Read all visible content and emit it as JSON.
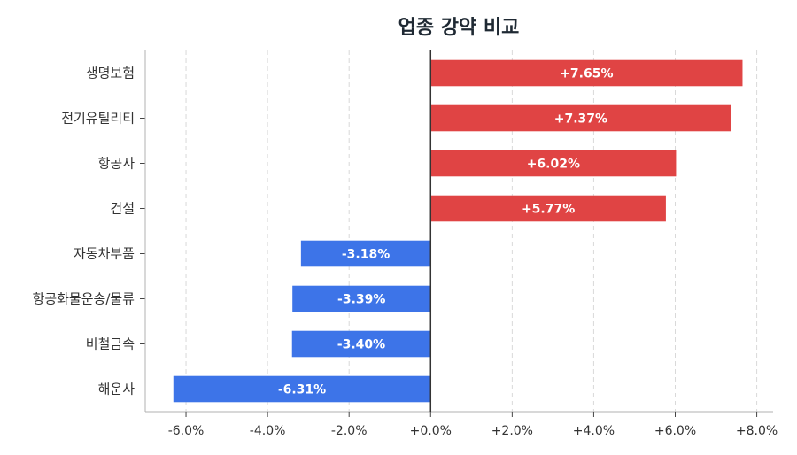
{
  "chart_data": {
    "type": "bar",
    "orientation": "horizontal",
    "title": "업종 강약 비교",
    "categories": [
      "생명보험",
      "전기유틸리티",
      "항공사",
      "건설",
      "자동차부품",
      "항공화물운송/물류",
      "비철금속",
      "해운사"
    ],
    "values": [
      7.65,
      7.37,
      6.02,
      5.77,
      -3.18,
      -3.39,
      -3.4,
      -6.31
    ],
    "value_labels": [
      "+7.65%",
      "+7.37%",
      "+6.02%",
      "+5.77%",
      "-3.18%",
      "-3.39%",
      "-3.40%",
      "-6.31%"
    ],
    "xlim": [
      -7.0,
      8.4
    ],
    "xticks": [
      -6,
      -4,
      -2,
      0,
      2,
      4,
      6,
      8
    ],
    "xtick_labels": [
      "-6.0%",
      "-4.0%",
      "-2.0%",
      "+0.0%",
      "+2.0%",
      "+4.0%",
      "+6.0%",
      "+8.0%"
    ],
    "xlabel": "",
    "ylabel": "",
    "grid": "vertical dashed",
    "colors": {
      "positive": "#e04444",
      "negative": "#3d74e8"
    }
  }
}
